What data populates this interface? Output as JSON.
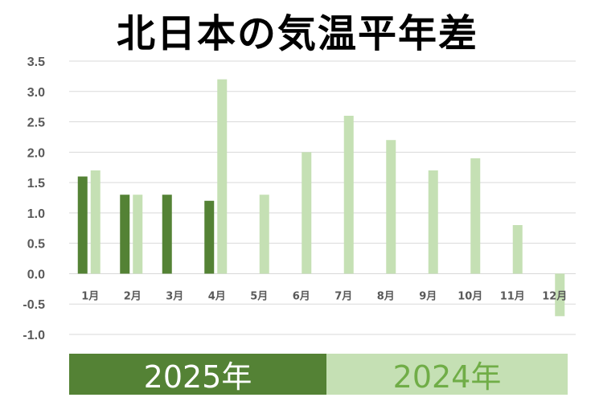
{
  "chart_data": {
    "type": "bar",
    "title": "北日本の気温平年差",
    "categories": [
      "1月",
      "2月",
      "3月",
      "4月",
      "5月",
      "6月",
      "7月",
      "8月",
      "9月",
      "10月",
      "11月",
      "12月"
    ],
    "series": [
      {
        "name": "2025年",
        "color": "#548235",
        "values": [
          1.6,
          1.3,
          1.3,
          1.2,
          null,
          null,
          null,
          null,
          null,
          null,
          null,
          null
        ]
      },
      {
        "name": "2024年",
        "color": "#c5e0b4",
        "values": [
          1.7,
          1.3,
          null,
          3.2,
          1.3,
          2.0,
          2.6,
          2.2,
          1.7,
          1.9,
          0.8,
          -0.7
        ]
      }
    ],
    "ylim": [
      -1.0,
      3.5
    ],
    "yticks": [
      "3.5",
      "3.0",
      "2.5",
      "2.0",
      "1.5",
      "1.0",
      "0.5",
      "0.0",
      "-0.5",
      "-1.0"
    ],
    "grid": true,
    "legend_position": "bottom",
    "xlabel": "",
    "ylabel": ""
  },
  "legend": {
    "label_2025": "2025年",
    "label_2024": "2024年",
    "text_color_2024": "#70ad47"
  }
}
